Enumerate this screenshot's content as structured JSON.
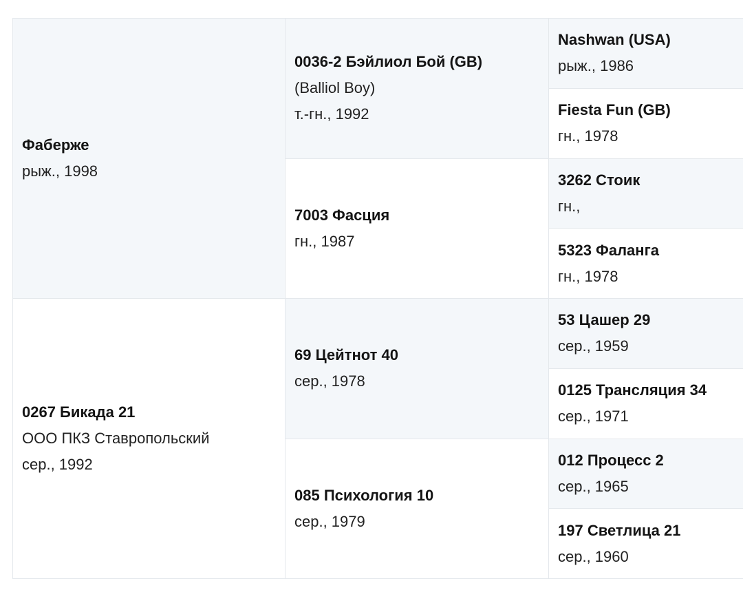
{
  "pedigree": {
    "gen1": [
      {
        "name": "Фаберже",
        "lines": [
          "рыж., 1998"
        ]
      },
      {
        "name": "0267 Бикада 21",
        "lines": [
          "ООО ПКЗ Ставропольский",
          "сер., 1992"
        ]
      }
    ],
    "gen2": [
      {
        "name": "0036-2 Бэйлиол Бой (GB)",
        "lines": [
          "(Balliol Boy)",
          "т.-гн., 1992"
        ]
      },
      {
        "name": "7003 Фасция",
        "lines": [
          "гн., 1987"
        ]
      },
      {
        "name": "69 Цейтнот 40",
        "lines": [
          "сер., 1978"
        ]
      },
      {
        "name": "085 Психология 10",
        "lines": [
          "сер., 1979"
        ]
      }
    ],
    "gen3": [
      {
        "name": "Nashwan (USA)",
        "lines": [
          "рыж., 1986"
        ]
      },
      {
        "name": "Fiesta Fun (GB)",
        "lines": [
          "гн., 1978"
        ]
      },
      {
        "name": "3262 Стоик",
        "lines": [
          "гн.,"
        ]
      },
      {
        "name": "5323 Фаланга",
        "lines": [
          "гн., 1978"
        ]
      },
      {
        "name": "53 Цашер 29",
        "lines": [
          "сер., 1959"
        ]
      },
      {
        "name": "0125 Трансляция 34",
        "lines": [
          "сер., 1971"
        ]
      },
      {
        "name": "012 Процесс 2",
        "lines": [
          "сер., 1965"
        ]
      },
      {
        "name": "197 Светлица 21",
        "lines": [
          "сер., 1960"
        ]
      }
    ]
  }
}
